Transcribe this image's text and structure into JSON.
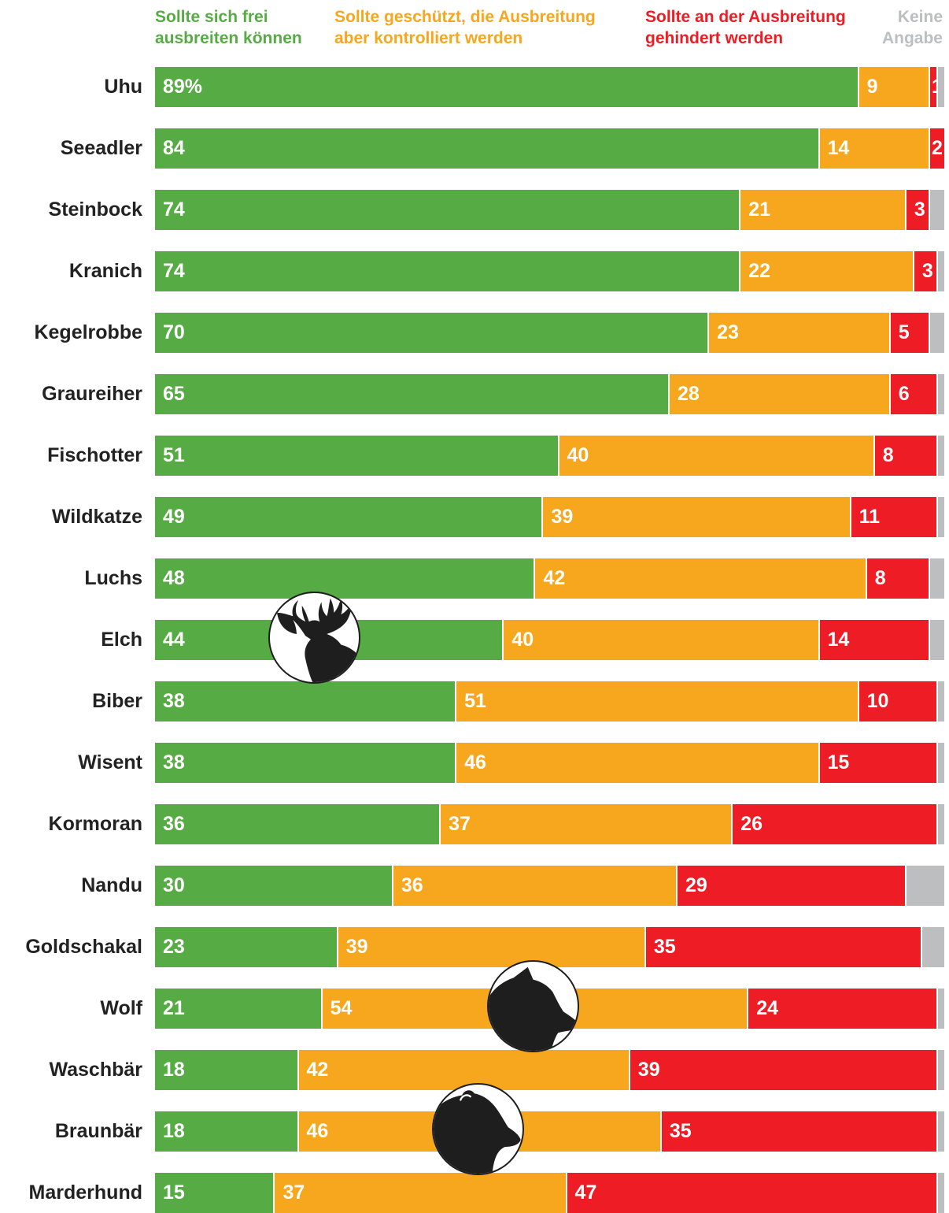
{
  "colors": {
    "green": "#57ab45",
    "orange": "#f6a71e",
    "red": "#ee1d25",
    "grey": "#bcbec0",
    "label": "#222222"
  },
  "icons": [
    "moose-icon",
    "wolf-icon",
    "bear-icon"
  ],
  "chart_data": {
    "type": "bar",
    "orientation": "horizontal",
    "stacked": true,
    "legend_placement": "top",
    "grid": false,
    "xlim": [
      0,
      100
    ],
    "value_suffix_first": "%",
    "series": [
      {
        "name": "Sollte sich frei\nausbreiten können",
        "color": "#57ab45"
      },
      {
        "name": "Sollte geschützt, die Ausbreitung\naber kontrolliert werden",
        "color": "#f6a71e"
      },
      {
        "name": "Sollte an der Ausbreitung\ngehindert werden",
        "color": "#ee1d25"
      },
      {
        "name": "Keine\nAngabe",
        "color": "#bcbec0"
      }
    ],
    "rows": [
      {
        "animal": "Uhu",
        "values": [
          89,
          9,
          1,
          1
        ]
      },
      {
        "animal": "Seeadler",
        "values": [
          84,
          14,
          2,
          0
        ]
      },
      {
        "animal": "Steinbock",
        "values": [
          74,
          21,
          3,
          2
        ]
      },
      {
        "animal": "Kranich",
        "values": [
          74,
          22,
          3,
          1
        ]
      },
      {
        "animal": "Kegelrobbe",
        "values": [
          70,
          23,
          5,
          2
        ]
      },
      {
        "animal": "Graureiher",
        "values": [
          65,
          28,
          6,
          1
        ]
      },
      {
        "animal": "Fischotter",
        "values": [
          51,
          40,
          8,
          1
        ]
      },
      {
        "animal": "Wildkatze",
        "values": [
          49,
          39,
          11,
          1
        ]
      },
      {
        "animal": "Luchs",
        "values": [
          48,
          42,
          8,
          2
        ]
      },
      {
        "animal": "Elch",
        "values": [
          44,
          40,
          14,
          2
        ]
      },
      {
        "animal": "Biber",
        "values": [
          38,
          51,
          10,
          1
        ]
      },
      {
        "animal": "Wisent",
        "values": [
          38,
          46,
          15,
          1
        ]
      },
      {
        "animal": "Kormoran",
        "values": [
          36,
          37,
          26,
          1
        ]
      },
      {
        "animal": "Nandu",
        "values": [
          30,
          36,
          29,
          5
        ]
      },
      {
        "animal": "Goldschakal",
        "values": [
          23,
          39,
          35,
          3
        ]
      },
      {
        "animal": "Wolf",
        "values": [
          21,
          54,
          24,
          1
        ]
      },
      {
        "animal": "Waschbär",
        "values": [
          18,
          42,
          39,
          1
        ]
      },
      {
        "animal": "Braunbär",
        "values": [
          18,
          46,
          35,
          1
        ]
      },
      {
        "animal": "Marderhund",
        "values": [
          15,
          37,
          47,
          1
        ]
      }
    ]
  }
}
